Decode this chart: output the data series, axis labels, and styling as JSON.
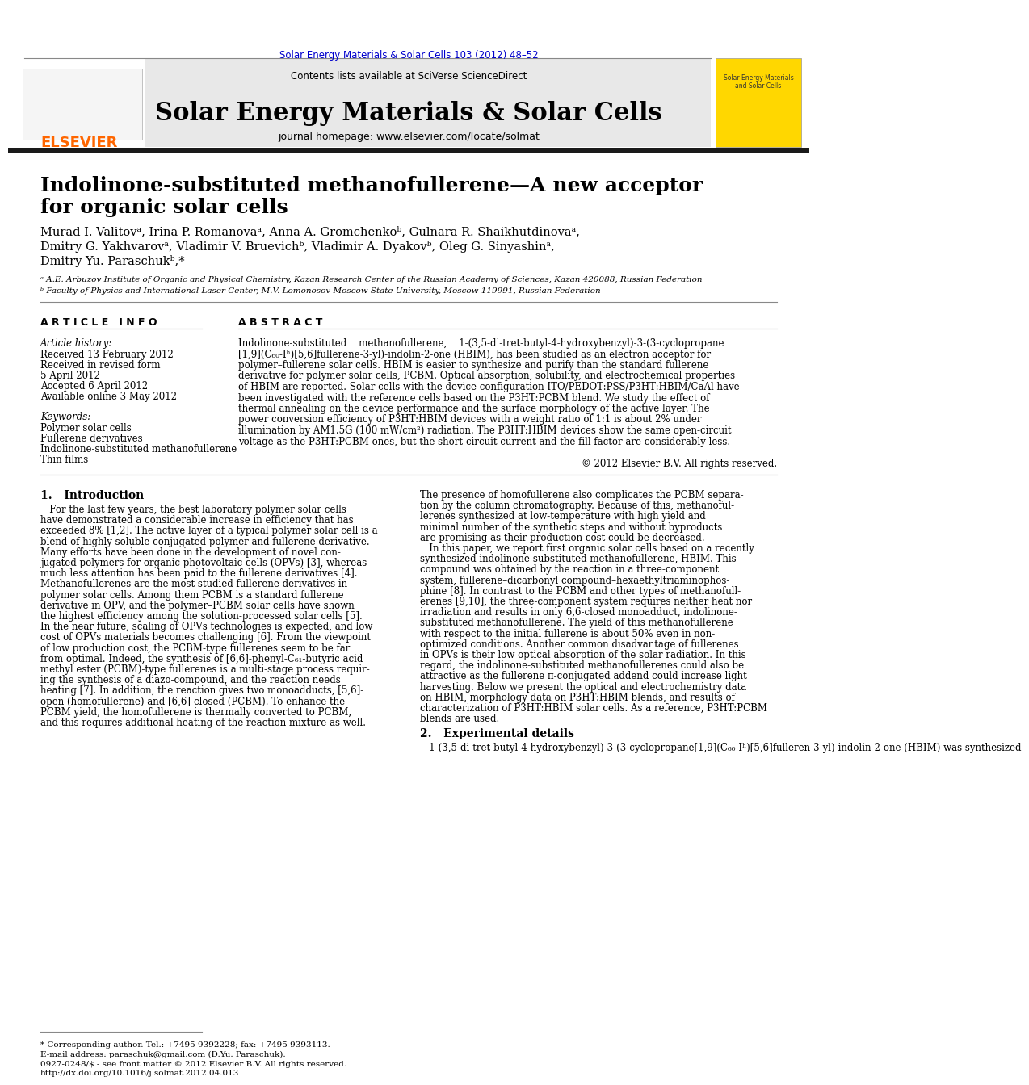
{
  "page_title": "Solar Energy Materials & Solar Cells 103 (2012) 48–52",
  "journal_name": "Solar Energy Materials & Solar Cells",
  "journal_homepage": "journal homepage: www.elsevier.com/locate/solmat",
  "contents_line": "Contents lists available at SciVerse ScienceDirect",
  "paper_title_line1": "Indolinone-substituted methanofullerene—A new acceptor",
  "paper_title_line2": "for organic solar cells",
  "authors_line1": "Murad I. Valitovᵃ, Irina P. Romanovaᵃ, Anna A. Gromchenkoᵇ, Gulnara R. Shaikhutdinovaᵃ,",
  "authors_line2": "Dmitry G. Yakhvarovᵃ, Vladimir V. Bruevichᵇ, Vladimir A. Dyakovᵇ, Oleg G. Sinyashinᵃ,",
  "authors_line3": "Dmitry Yu. Paraschukᵇ,*",
  "affil_a": "ᵃ A.E. Arbuzov Institute of Organic and Physical Chemistry, Kazan Research Center of the Russian Academy of Sciences, Kazan 420088, Russian Federation",
  "affil_b": "ᵇ Faculty of Physics and International Laser Center, M.V. Lomonosov Moscow State University, Moscow 119991, Russian Federation",
  "article_info_title": "A R T I C L E   I N F O",
  "article_history_title": "Article history:",
  "received": "Received 13 February 2012",
  "revised": "Received in revised form",
  "revised2": "5 April 2012",
  "accepted": "Accepted 6 April 2012",
  "available": "Available online 3 May 2012",
  "keywords_title": "Keywords:",
  "keyword1": "Polymer solar cells",
  "keyword2": "Fullerene derivatives",
  "keyword3": "Indolinone-substituted methanofullerene",
  "keyword4": "Thin films",
  "abstract_title": "A B S T R A C T",
  "copyright": "© 2012 Elsevier B.V. All rights reserved.",
  "intro_title": "1.   Introduction",
  "section2_title": "2.   Experimental details",
  "section2_text": "   1-(3,5-di-tret-butyl-4-hydroxybenzyl)-3-(3-cyclopropane[1,9](C₆₀-Iʰ)[5,6]fulleren-3-yl)-indolin-2-one (HBIM) was synthesized",
  "footer_text1": "* Corresponding author. Tel.: +7495 9392228; fax: +7495 9393113.",
  "footer_text2": "E-mail address: paraschuk@gmail.com (D.Yu. Paraschuk).",
  "footer_text3": "0927-0248/$ - see front matter © 2012 Elsevier B.V. All rights reserved.",
  "footer_text4": "http://dx.doi.org/10.1016/j.solmat.2012.04.013",
  "elsevier_color": "#FF6600",
  "link_color": "#0000CC",
  "header_bg": "#E8E8E8",
  "dark_line_color": "#1a1a1a",
  "text_color": "#000000",
  "abstract_lines": [
    "Indolinone-substituted    methanofullerene,    1-(3,5-di-tret-butyl-4-hydroxybenzyl)-3-(3-cyclopropane",
    "[1,9](C₆₀-Iʰ)[5,6]fullerene-3-yl)-indolin-2-one (HBIM), has been studied as an electron acceptor for",
    "polymer–fullerene solar cells. HBIM is easier to synthesize and purify than the standard fullerene",
    "derivative for polymer solar cells, PCBM. Optical absorption, solubility, and electrochemical properties",
    "of HBIM are reported. Solar cells with the device configuration ITO/PEDOT:PSS/P3HT:HBIM/CaAl have",
    "been investigated with the reference cells based on the P3HT:PCBM blend. We study the effect of",
    "thermal annealing on the device performance and the surface morphology of the active layer. The",
    "power conversion efficiency of P3HT:HBIM devices with a weight ratio of 1:1 is about 2% under",
    "illumination by AM1.5G (100 mW/cm²) radiation. The P3HT:HBIM devices show the same open-circuit",
    "voltage as the P3HT:PCBM ones, but the short-circuit current and the fill factor are considerably less."
  ],
  "intro_lines_left": [
    "   For the last few years, the best laboratory polymer solar cells",
    "have demonstrated a considerable increase in efficiency that has",
    "exceeded 8% [1,2]. The active layer of a typical polymer solar cell is a",
    "blend of highly soluble conjugated polymer and fullerene derivative.",
    "Many efforts have been done in the development of novel con-",
    "jugated polymers for organic photovoltaic cells (OPVs) [3], whereas",
    "much less attention has been paid to the fullerene derivatives [4].",
    "Methanofullerenes are the most studied fullerene derivatives in",
    "polymer solar cells. Among them PCBM is a standard fullerene",
    "derivative in OPV, and the polymer–PCBM solar cells have shown",
    "the highest efficiency among the solution-processed solar cells [5].",
    "In the near future, scaling of OPVs technologies is expected, and low",
    "cost of OPVs materials becomes challenging [6]. From the viewpoint",
    "of low production cost, the PCBM-type fullerenes seem to be far",
    "from optimal. Indeed, the synthesis of [6,6]-phenyl-C₆₁-butyric acid",
    "methyl ester (PCBM)-type fullerenes is a multi-stage process requir-",
    "ing the synthesis of a diazo-compound, and the reaction needs",
    "heating [7]. In addition, the reaction gives two monoadducts, [5,6]-",
    "open (homofullerene) and [6,6]-closed (PCBM). To enhance the",
    "PCBM yield, the homofullerene is thermally converted to PCBM,",
    "and this requires additional heating of the reaction mixture as well."
  ],
  "intro_lines_right": [
    "The presence of homofullerene also complicates the PCBM separa-",
    "tion by the column chromatography. Because of this, methanoful-",
    "lerenes synthesized at low-temperature with high yield and",
    "minimal number of the synthetic steps and without byproducts",
    "are promising as their production cost could be decreased.",
    "   In this paper, we report first organic solar cells based on a recently",
    "synthesized indolinone-substituted methanofullerene, HBIM. This",
    "compound was obtained by the reaction in a three-component",
    "system, fullerene–dicarbonyl compound–hexaethyltriaminophos-",
    "phine [8]. In contrast to the PCBM and other types of methanofull-",
    "erenes [9,10], the three-component system requires neither heat nor",
    "irradiation and results in only 6,6-closed monoadduct, indolinone-",
    "substituted methanofullerene. The yield of this methanofullerene",
    "with respect to the initial fullerene is about 50% even in non-",
    "optimized conditions. Another common disadvantage of fullerenes",
    "in OPVs is their low optical absorption of the solar radiation. In this",
    "regard, the indolinone-substituted methanofullerenes could also be",
    "attractive as the fullerene π-conjugated addend could increase light",
    "harvesting. Below we present the optical and electrochemistry data",
    "on HBIM, morphology data on P3HT:HBIM blends, and results of",
    "characterization of P3HT:HBIM solar cells. As a reference, P3HT:PCBM",
    "blends are used."
  ]
}
